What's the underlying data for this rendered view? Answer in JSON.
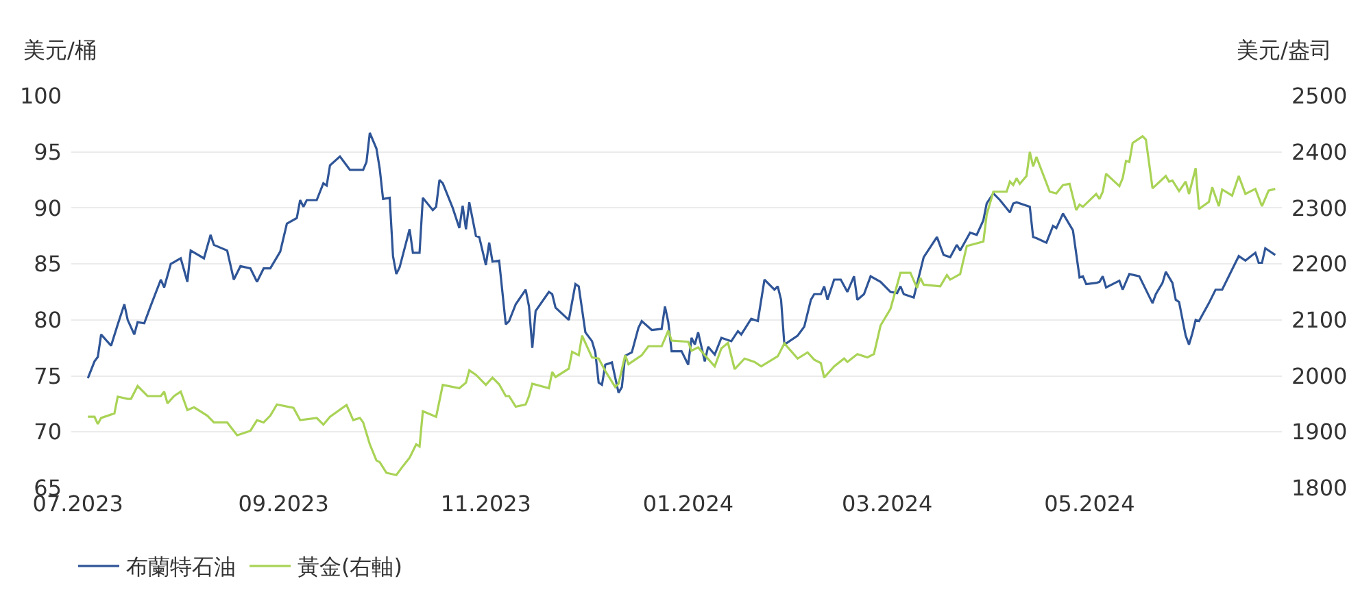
{
  "chart_data": {
    "type": "line",
    "ylabel": "美元/桶",
    "y2label": "美元/盎司",
    "xlim": [
      "2023-06-29",
      "2024-06-28"
    ],
    "xticks": [
      {
        "value": "2023-07-01",
        "label": "07.2023"
      },
      {
        "value": "2023-09-01",
        "label": "09.2023"
      },
      {
        "value": "2023-11-01",
        "label": "11.2023"
      },
      {
        "value": "2024-01-01",
        "label": "01.2024"
      },
      {
        "value": "2024-03-01",
        "label": "03.2024"
      },
      {
        "value": "2024-05-01",
        "label": "05.2024"
      }
    ],
    "ylim": [
      65,
      100
    ],
    "yticks": [
      65,
      70,
      75,
      80,
      85,
      90,
      95,
      100
    ],
    "y2lim": [
      1800,
      2500
    ],
    "y2ticks": [
      1800,
      1900,
      2000,
      2100,
      2200,
      2300,
      2400,
      2500
    ],
    "grid": "y",
    "legend": "bottom left",
    "marker": "none",
    "line_style": "solid",
    "series": [
      {
        "name": "布蘭特石油",
        "color": "#2f5597",
        "x": [
          "2023-07-04",
          "2023-07-06",
          "2023-07-07",
          "2023-07-08",
          "2023-07-11",
          "2023-07-13",
          "2023-07-15",
          "2023-07-16",
          "2023-07-18",
          "2023-07-19",
          "2023-07-21",
          "2023-07-23",
          "2023-07-26",
          "2023-07-27",
          "2023-07-29",
          "2023-08-01",
          "2023-08-03",
          "2023-08-04",
          "2023-08-08",
          "2023-08-10",
          "2023-08-11",
          "2023-08-15",
          "2023-08-17",
          "2023-08-19",
          "2023-08-22",
          "2023-08-24",
          "2023-08-26",
          "2023-08-28",
          "2023-08-31",
          "2023-09-02",
          "2023-09-05",
          "2023-09-06",
          "2023-09-07",
          "2023-09-08",
          "2023-09-11",
          "2023-09-13",
          "2023-09-14",
          "2023-09-15",
          "2023-09-18",
          "2023-09-21",
          "2023-09-25",
          "2023-09-26",
          "2023-09-27",
          "2023-09-29",
          "2023-09-30",
          "2023-10-01",
          "2023-10-03",
          "2023-10-04",
          "2023-10-05",
          "2023-10-06",
          "2023-10-09",
          "2023-10-10",
          "2023-10-12",
          "2023-10-13",
          "2023-10-16",
          "2023-10-17",
          "2023-10-18",
          "2023-10-19",
          "2023-10-22",
          "2023-10-24",
          "2023-10-25",
          "2023-10-26",
          "2023-10-27",
          "2023-10-29",
          "2023-10-30",
          "2023-11-01",
          "2023-11-02",
          "2023-11-03",
          "2023-11-05",
          "2023-11-07",
          "2023-11-08",
          "2023-11-10",
          "2023-11-13",
          "2023-11-14",
          "2023-11-15",
          "2023-11-16",
          "2023-11-20",
          "2023-11-21",
          "2023-11-22",
          "2023-11-26",
          "2023-11-28",
          "2023-11-29",
          "2023-12-01",
          "2023-12-03",
          "2023-12-04",
          "2023-12-05",
          "2023-12-06",
          "2023-12-07",
          "2023-12-09",
          "2023-12-11",
          "2023-12-12",
          "2023-12-13",
          "2023-12-15",
          "2023-12-17",
          "2023-12-18",
          "2023-12-21",
          "2023-12-24",
          "2023-12-25",
          "2023-12-26",
          "2023-12-27",
          "2023-12-30",
          "2024-01-01",
          "2024-01-02",
          "2024-01-03",
          "2024-01-04",
          "2024-01-06",
          "2024-01-07",
          "2024-01-09",
          "2024-01-11",
          "2024-01-14",
          "2024-01-16",
          "2024-01-17",
          "2024-01-20",
          "2024-01-22",
          "2024-01-24",
          "2024-01-27",
          "2024-01-28",
          "2024-01-29",
          "2024-01-30",
          "2024-02-03",
          "2024-02-05",
          "2024-02-07",
          "2024-02-08",
          "2024-02-10",
          "2024-02-11",
          "2024-02-12",
          "2024-02-14",
          "2024-02-16",
          "2024-02-18",
          "2024-02-20",
          "2024-02-21",
          "2024-02-23",
          "2024-02-25",
          "2024-02-28",
          "2024-03-02",
          "2024-03-04",
          "2024-03-05",
          "2024-03-06",
          "2024-03-09",
          "2024-03-12",
          "2024-03-16",
          "2024-03-18",
          "2024-03-20",
          "2024-03-22",
          "2024-03-23",
          "2024-03-26",
          "2024-03-28",
          "2024-03-30",
          "2024-03-31",
          "2024-04-02",
          "2024-04-04",
          "2024-04-07",
          "2024-04-08",
          "2024-04-09",
          "2024-04-13",
          "2024-04-14",
          "2024-04-15",
          "2024-04-18",
          "2024-04-20",
          "2024-04-21",
          "2024-04-23",
          "2024-04-26",
          "2024-04-28",
          "2024-04-29",
          "2024-04-30",
          "2024-05-03",
          "2024-05-04",
          "2024-05-05",
          "2024-05-06",
          "2024-05-10",
          "2024-05-11",
          "2024-05-13",
          "2024-05-16",
          "2024-05-20",
          "2024-05-21",
          "2024-05-23",
          "2024-05-24",
          "2024-05-26",
          "2024-05-27",
          "2024-05-28",
          "2024-05-30",
          "2024-05-31",
          "2024-06-01",
          "2024-06-02",
          "2024-06-03",
          "2024-06-06",
          "2024-06-08",
          "2024-06-10",
          "2024-06-13",
          "2024-06-15",
          "2024-06-17",
          "2024-06-20",
          "2024-06-21",
          "2024-06-22",
          "2024-06-23",
          "2024-06-26"
        ],
        "values": [
          74.8,
          76.3,
          76.7,
          78.7,
          77.7,
          79.6,
          81.4,
          80.0,
          78.7,
          79.8,
          79.7,
          81.3,
          83.6,
          82.9,
          85.0,
          85.5,
          83.4,
          86.2,
          85.5,
          87.6,
          86.7,
          86.2,
          83.6,
          84.8,
          84.6,
          83.4,
          84.6,
          84.6,
          86.1,
          88.6,
          89.1,
          90.7,
          90.1,
          90.7,
          90.7,
          92.2,
          92.0,
          93.8,
          94.6,
          93.4,
          93.4,
          94.1,
          96.7,
          95.3,
          93.5,
          90.8,
          90.9,
          85.7,
          84.1,
          84.7,
          88.1,
          86.0,
          86.0,
          90.9,
          89.8,
          90.1,
          92.5,
          92.2,
          90.0,
          88.2,
          90.2,
          88.1,
          90.5,
          87.5,
          87.4,
          84.9,
          86.9,
          85.2,
          85.3,
          79.6,
          79.9,
          81.4,
          82.7,
          81.2,
          77.5,
          80.8,
          82.5,
          82.3,
          81.1,
          80.0,
          83.2,
          83.0,
          78.9,
          78.1,
          77.1,
          74.4,
          74.2,
          76.0,
          76.2,
          73.5,
          74.0,
          76.8,
          77.1,
          79.3,
          79.9,
          79.1,
          79.2,
          81.2,
          79.8,
          77.2,
          77.2,
          76.0,
          78.4,
          77.8,
          78.9,
          76.3,
          77.6,
          76.9,
          78.4,
          78.1,
          79.0,
          78.7,
          80.1,
          79.9,
          83.6,
          82.7,
          83.0,
          81.8,
          77.8,
          78.6,
          79.4,
          81.8,
          82.3,
          82.3,
          83.0,
          81.8,
          83.6,
          83.6,
          82.5,
          83.9,
          81.8,
          82.3,
          83.9,
          83.4,
          82.5,
          82.4,
          83.0,
          82.3,
          82.0,
          85.6,
          87.4,
          85.8,
          85.6,
          86.7,
          86.2,
          87.8,
          87.6,
          88.9,
          90.4,
          91.3,
          90.7,
          89.6,
          90.4,
          90.5,
          90.1,
          87.4,
          87.3,
          86.9,
          88.4,
          88.2,
          89.5,
          88.0,
          83.8,
          83.9,
          83.2,
          83.3,
          83.4,
          83.9,
          82.9,
          83.5,
          82.7,
          84.1,
          83.9,
          81.5,
          82.3,
          83.3,
          84.3,
          83.3,
          81.8,
          81.6,
          78.6,
          77.8,
          78.8,
          80.0,
          79.9,
          81.5,
          82.7,
          82.7,
          84.5,
          85.7,
          85.3,
          86.0,
          85.1,
          85.1,
          86.4,
          85.8
        ]
      },
      {
        "name": "黃金(右軸)",
        "color": "#a9d356",
        "axis": "y2",
        "x": [
          "2023-07-04",
          "2023-07-06",
          "2023-07-07",
          "2023-07-08",
          "2023-07-12",
          "2023-07-13",
          "2023-07-16",
          "2023-07-17",
          "2023-07-19",
          "2023-07-22",
          "2023-07-26",
          "2023-07-27",
          "2023-07-28",
          "2023-07-30",
          "2023-08-01",
          "2023-08-03",
          "2023-08-05",
          "2023-08-09",
          "2023-08-11",
          "2023-08-15",
          "2023-08-18",
          "2023-08-22",
          "2023-08-24",
          "2023-08-26",
          "2023-08-28",
          "2023-08-30",
          "2023-09-04",
          "2023-09-06",
          "2023-09-11",
          "2023-09-13",
          "2023-09-15",
          "2023-09-20",
          "2023-09-22",
          "2023-09-24",
          "2023-09-25",
          "2023-09-27",
          "2023-09-29",
          "2023-09-30",
          "2023-10-02",
          "2023-10-05",
          "2023-10-07",
          "2023-10-09",
          "2023-10-11",
          "2023-10-12",
          "2023-10-13",
          "2023-10-17",
          "2023-10-19",
          "2023-10-24",
          "2023-10-26",
          "2023-10-27",
          "2023-10-29",
          "2023-11-01",
          "2023-11-03",
          "2023-11-05",
          "2023-11-07",
          "2023-11-08",
          "2023-11-10",
          "2023-11-13",
          "2023-11-14",
          "2023-11-15",
          "2023-11-20",
          "2023-11-21",
          "2023-11-22",
          "2023-11-26",
          "2023-11-27",
          "2023-11-29",
          "2023-11-30",
          "2023-12-03",
          "2023-12-05",
          "2023-12-07",
          "2023-12-10",
          "2023-12-11",
          "2023-12-13",
          "2023-12-14",
          "2023-12-18",
          "2023-12-20",
          "2023-12-24",
          "2023-12-26",
          "2023-12-27",
          "2024-01-01",
          "2024-01-02",
          "2024-01-04",
          "2024-01-06",
          "2024-01-09",
          "2024-01-11",
          "2024-01-13",
          "2024-01-15",
          "2024-01-18",
          "2024-01-21",
          "2024-01-23",
          "2024-01-28",
          "2024-01-30",
          "2024-02-03",
          "2024-02-06",
          "2024-02-08",
          "2024-02-10",
          "2024-02-11",
          "2024-02-14",
          "2024-02-17",
          "2024-02-18",
          "2024-02-21",
          "2024-02-24",
          "2024-02-26",
          "2024-02-28",
          "2024-03-02",
          "2024-03-05",
          "2024-03-08",
          "2024-03-10",
          "2024-03-11",
          "2024-03-12",
          "2024-03-17",
          "2024-03-19",
          "2024-03-20",
          "2024-03-23",
          "2024-03-25",
          "2024-03-30",
          "2024-03-31",
          "2024-04-02",
          "2024-04-04",
          "2024-04-06",
          "2024-04-07",
          "2024-04-08",
          "2024-04-09",
          "2024-04-10",
          "2024-04-12",
          "2024-04-13",
          "2024-04-14",
          "2024-04-15",
          "2024-04-19",
          "2024-04-21",
          "2024-04-23",
          "2024-04-25",
          "2024-04-27",
          "2024-04-28",
          "2024-04-29",
          "2024-05-03",
          "2024-05-04",
          "2024-05-05",
          "2024-05-06",
          "2024-05-10",
          "2024-05-11",
          "2024-05-12",
          "2024-05-13",
          "2024-05-14",
          "2024-05-17",
          "2024-05-18",
          "2024-05-20",
          "2024-05-24",
          "2024-05-25",
          "2024-05-26",
          "2024-05-28",
          "2024-05-30",
          "2024-05-31",
          "2024-06-02",
          "2024-06-03",
          "2024-06-06",
          "2024-06-07",
          "2024-06-09",
          "2024-06-10",
          "2024-06-13",
          "2024-06-15",
          "2024-06-17",
          "2024-06-20",
          "2024-06-22",
          "2024-06-24",
          "2024-06-26"
        ],
        "values": [
          1927,
          1927,
          1914,
          1925,
          1933,
          1963,
          1959,
          1959,
          1982,
          1964,
          1964,
          1972,
          1951,
          1964,
          1972,
          1939,
          1944,
          1929,
          1917,
          1917,
          1894,
          1902,
          1921,
          1917,
          1929,
          1949,
          1943,
          1921,
          1925,
          1913,
          1927,
          1948,
          1921,
          1925,
          1917,
          1878,
          1849,
          1846,
          1827,
          1823,
          1839,
          1854,
          1878,
          1874,
          1937,
          1927,
          1984,
          1978,
          1988,
          2010,
          2002,
          1984,
          1997,
          1985,
          1964,
          1964,
          1945,
          1949,
          1964,
          1986,
          1978,
          2007,
          1998,
          2013,
          2043,
          2037,
          2072,
          2033,
          2031,
          2009,
          1980,
          1986,
          2037,
          2021,
          2037,
          2053,
          2053,
          2081,
          2063,
          2061,
          2045,
          2051,
          2037,
          2017,
          2049,
          2059,
          2012,
          2031,
          2025,
          2017,
          2035,
          2058,
          2031,
          2042,
          2029,
          2023,
          1997,
          2017,
          2031,
          2025,
          2039,
          2033,
          2039,
          2090,
          2120,
          2184,
          2184,
          2157,
          2175,
          2163,
          2160,
          2180,
          2172,
          2182,
          2232,
          2240,
          2288,
          2329,
          2329,
          2329,
          2347,
          2341,
          2353,
          2343,
          2357,
          2400,
          2374,
          2391,
          2329,
          2326,
          2341,
          2343,
          2296,
          2306,
          2302,
          2325,
          2316,
          2329,
          2361,
          2339,
          2353,
          2384,
          2382,
          2416,
          2428,
          2422,
          2335,
          2357,
          2347,
          2349,
          2330,
          2347,
          2325,
          2371,
          2298,
          2311,
          2337,
          2303,
          2333,
          2322,
          2357,
          2325,
          2334,
          2303,
          2331,
          2334
        ]
      }
    ]
  }
}
